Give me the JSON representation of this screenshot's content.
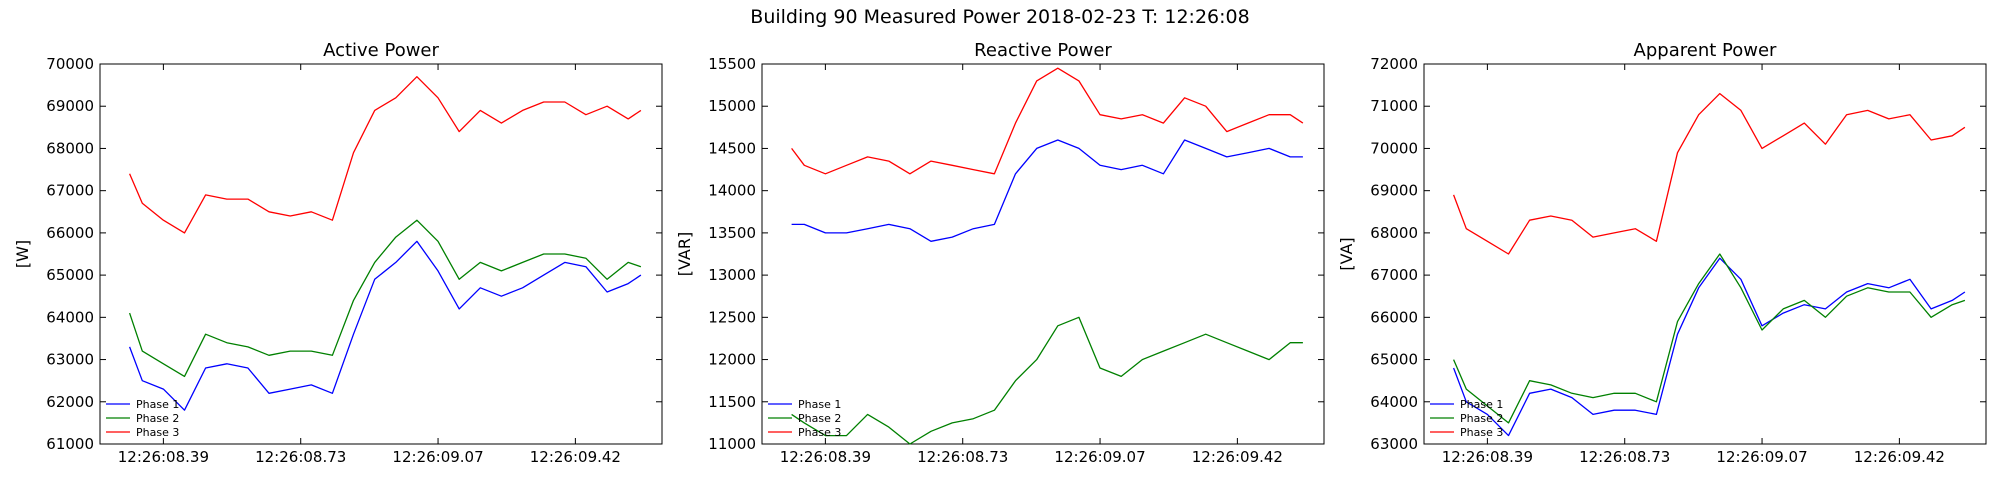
{
  "figure_title": "Building 90 Measured Power 2018-02-23 T: 12:26:08",
  "colors": {
    "Phase 1": "#0000ff",
    "Phase 2": "#008000",
    "Phase 3": "#ff0000",
    "axes": "#000000",
    "background": "#ffffff"
  },
  "chart_data": [
    {
      "type": "line",
      "title": "Active Power",
      "xlabel": "",
      "ylabel": "[W]",
      "ylim": [
        61000,
        70000
      ],
      "yticks": [
        61000,
        62000,
        63000,
        64000,
        65000,
        66000,
        67000,
        68000,
        69000,
        70000
      ],
      "xlim": [
        0,
        1.2
      ],
      "xticks": [
        0.15,
        0.475,
        0.8,
        1.125
      ],
      "xtick_labels": [
        "12:26:08.39",
        "12:26:08.73",
        "12:26:09.07",
        "12:26:09.42"
      ],
      "legend_position": "lower-left",
      "grid": false,
      "x": [
        0.07,
        0.1,
        0.15,
        0.2,
        0.25,
        0.3,
        0.35,
        0.4,
        0.45,
        0.5,
        0.55,
        0.6,
        0.65,
        0.7,
        0.75,
        0.8,
        0.85,
        0.9,
        0.95,
        1.0,
        1.05,
        1.1,
        1.15,
        1.2,
        1.25,
        1.28
      ],
      "series": [
        {
          "name": "Phase 1",
          "values": [
            63300,
            62500,
            62300,
            61800,
            62800,
            62900,
            62800,
            62200,
            62300,
            62400,
            62200,
            63600,
            64900,
            65300,
            65800,
            65100,
            64200,
            64700,
            64500,
            64700,
            65000,
            65300,
            65200,
            64600,
            64800,
            65000
          ]
        },
        {
          "name": "Phase 2",
          "values": [
            64100,
            63200,
            62900,
            62600,
            63600,
            63400,
            63300,
            63100,
            63200,
            63200,
            63100,
            64400,
            65300,
            65900,
            66300,
            65800,
            64900,
            65300,
            65100,
            65300,
            65500,
            65500,
            65400,
            64900,
            65300,
            65200
          ]
        },
        {
          "name": "Phase 3",
          "values": [
            67400,
            66700,
            66300,
            66000,
            66900,
            66800,
            66800,
            66500,
            66400,
            66500,
            66300,
            67900,
            68900,
            69200,
            69700,
            69200,
            68400,
            68900,
            68600,
            68900,
            69100,
            69100,
            68800,
            69000,
            68700,
            68900
          ]
        }
      ]
    },
    {
      "type": "line",
      "title": "Reactive Power",
      "xlabel": "",
      "ylabel": "[VAR]",
      "ylim": [
        11000,
        15500
      ],
      "yticks": [
        11000,
        11500,
        12000,
        12500,
        13000,
        13500,
        14000,
        14500,
        15000,
        15500
      ],
      "xlim": [
        0,
        1.2
      ],
      "xticks": [
        0.15,
        0.475,
        0.8,
        1.125
      ],
      "xtick_labels": [
        "12:26:08.39",
        "12:26:08.73",
        "12:26:09.07",
        "12:26:09.42"
      ],
      "legend_position": "lower-left",
      "grid": false,
      "x": [
        0.07,
        0.1,
        0.15,
        0.2,
        0.25,
        0.3,
        0.35,
        0.4,
        0.45,
        0.5,
        0.55,
        0.6,
        0.65,
        0.7,
        0.75,
        0.8,
        0.85,
        0.9,
        0.95,
        1.0,
        1.05,
        1.1,
        1.15,
        1.2,
        1.25,
        1.28
      ],
      "series": [
        {
          "name": "Phase 1",
          "values": [
            13600,
            13600,
            13500,
            13500,
            13550,
            13600,
            13550,
            13400,
            13450,
            13550,
            13600,
            14200,
            14500,
            14600,
            14500,
            14300,
            14250,
            14300,
            14200,
            14600,
            14500,
            14400,
            14450,
            14500,
            14400,
            14400
          ]
        },
        {
          "name": "Phase 2",
          "values": [
            11350,
            11250,
            11100,
            11100,
            11350,
            11200,
            11000,
            11150,
            11250,
            11300,
            11400,
            11750,
            12000,
            12400,
            12500,
            11900,
            11800,
            12000,
            12100,
            12200,
            12300,
            12200,
            12100,
            12000,
            12200,
            12200
          ]
        },
        {
          "name": "Phase 3",
          "values": [
            14500,
            14300,
            14200,
            14300,
            14400,
            14350,
            14200,
            14350,
            14300,
            14250,
            14200,
            14800,
            15300,
            15450,
            15300,
            14900,
            14850,
            14900,
            14800,
            15100,
            15000,
            14700,
            14800,
            14900,
            14900,
            14800
          ]
        }
      ]
    },
    {
      "type": "line",
      "title": "Apparent Power",
      "xlabel": "",
      "ylabel": "[VA]",
      "ylim": [
        63000,
        72000
      ],
      "yticks": [
        63000,
        64000,
        65000,
        66000,
        67000,
        68000,
        69000,
        70000,
        71000,
        72000
      ],
      "xlim": [
        0,
        1.2
      ],
      "xticks": [
        0.15,
        0.475,
        0.8,
        1.125
      ],
      "xtick_labels": [
        "12:26:08.39",
        "12:26:08.73",
        "12:26:09.07",
        "12:26:09.42"
      ],
      "legend_position": "lower-left",
      "grid": false,
      "x": [
        0.07,
        0.1,
        0.15,
        0.2,
        0.25,
        0.3,
        0.35,
        0.4,
        0.45,
        0.5,
        0.55,
        0.6,
        0.65,
        0.7,
        0.75,
        0.8,
        0.85,
        0.9,
        0.95,
        1.0,
        1.05,
        1.1,
        1.15,
        1.2,
        1.25,
        1.28
      ],
      "series": [
        {
          "name": "Phase 1",
          "values": [
            64800,
            64000,
            63700,
            63200,
            64200,
            64300,
            64100,
            63700,
            63800,
            63800,
            63700,
            65600,
            66700,
            67400,
            66900,
            65800,
            66100,
            66300,
            66200,
            66600,
            66800,
            66700,
            66900,
            66200,
            66400,
            66600
          ]
        },
        {
          "name": "Phase 2",
          "values": [
            65000,
            64300,
            63900,
            63500,
            64500,
            64400,
            64200,
            64100,
            64200,
            64200,
            64000,
            65900,
            66800,
            67500,
            66700,
            65700,
            66200,
            66400,
            66000,
            66500,
            66700,
            66600,
            66600,
            66000,
            66300,
            66400
          ]
        },
        {
          "name": "Phase 3",
          "values": [
            68900,
            68100,
            67800,
            67500,
            68300,
            68400,
            68300,
            67900,
            68000,
            68100,
            67800,
            69900,
            70800,
            71300,
            70900,
            70000,
            70300,
            70600,
            70100,
            70800,
            70900,
            70700,
            70800,
            70200,
            70300,
            70500
          ]
        }
      ]
    }
  ]
}
